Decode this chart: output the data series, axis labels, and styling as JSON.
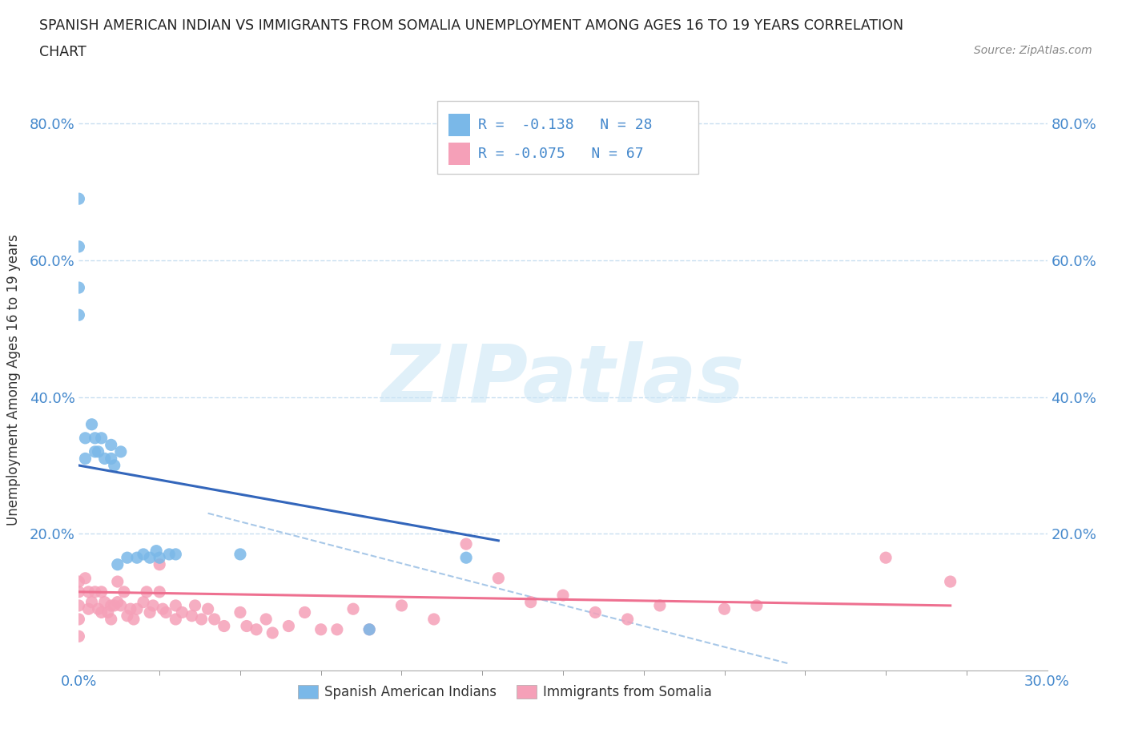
{
  "title_line1": "SPANISH AMERICAN INDIAN VS IMMIGRANTS FROM SOMALIA UNEMPLOYMENT AMONG AGES 16 TO 19 YEARS CORRELATION",
  "title_line2": "CHART",
  "source": "Source: ZipAtlas.com",
  "ylabel": "Unemployment Among Ages 16 to 19 years",
  "xlim": [
    0.0,
    0.3
  ],
  "ylim": [
    0.0,
    0.85
  ],
  "ytick_positions": [
    0.0,
    0.2,
    0.4,
    0.6,
    0.8
  ],
  "ytick_labels": [
    "",
    "20.0%",
    "40.0%",
    "60.0%",
    "80.0%"
  ],
  "grid_color": "#c8dff0",
  "background_color": "#ffffff",
  "watermark_text": "ZIPatlas",
  "legend_R1": "R =  -0.138",
  "legend_N1": "N = 28",
  "legend_R2": "R = -0.075",
  "legend_N2": "N = 67",
  "legend_label1": "Spanish American Indians",
  "legend_label2": "Immigrants from Somalia",
  "scatter_color1": "#7ab8e8",
  "scatter_color2": "#f5a0b8",
  "line_color1": "#3366bb",
  "line_color2": "#ee7090",
  "dashed_color": "#a8c8e8",
  "blue_x": [
    0.0,
    0.0,
    0.0,
    0.0,
    0.002,
    0.002,
    0.004,
    0.005,
    0.005,
    0.006,
    0.007,
    0.008,
    0.01,
    0.01,
    0.011,
    0.012,
    0.013,
    0.015,
    0.018,
    0.02,
    0.022,
    0.024,
    0.025,
    0.028,
    0.03,
    0.05,
    0.09,
    0.12
  ],
  "blue_y": [
    0.69,
    0.62,
    0.56,
    0.52,
    0.34,
    0.31,
    0.36,
    0.34,
    0.32,
    0.32,
    0.34,
    0.31,
    0.33,
    0.31,
    0.3,
    0.155,
    0.32,
    0.165,
    0.165,
    0.17,
    0.165,
    0.175,
    0.165,
    0.17,
    0.17,
    0.17,
    0.06,
    0.165
  ],
  "pink_x": [
    0.0,
    0.0,
    0.0,
    0.0,
    0.0,
    0.002,
    0.003,
    0.003,
    0.004,
    0.005,
    0.006,
    0.007,
    0.007,
    0.008,
    0.009,
    0.01,
    0.01,
    0.011,
    0.012,
    0.012,
    0.013,
    0.014,
    0.015,
    0.016,
    0.017,
    0.018,
    0.02,
    0.021,
    0.022,
    0.023,
    0.025,
    0.025,
    0.026,
    0.027,
    0.03,
    0.03,
    0.032,
    0.035,
    0.036,
    0.038,
    0.04,
    0.042,
    0.045,
    0.05,
    0.052,
    0.055,
    0.058,
    0.06,
    0.065,
    0.07,
    0.075,
    0.08,
    0.085,
    0.09,
    0.1,
    0.11,
    0.12,
    0.13,
    0.14,
    0.15,
    0.16,
    0.17,
    0.18,
    0.2,
    0.21,
    0.25,
    0.27
  ],
  "pink_y": [
    0.13,
    0.115,
    0.095,
    0.075,
    0.05,
    0.135,
    0.115,
    0.09,
    0.1,
    0.115,
    0.09,
    0.115,
    0.085,
    0.1,
    0.085,
    0.095,
    0.075,
    0.095,
    0.13,
    0.1,
    0.095,
    0.115,
    0.08,
    0.09,
    0.075,
    0.09,
    0.1,
    0.115,
    0.085,
    0.095,
    0.155,
    0.115,
    0.09,
    0.085,
    0.095,
    0.075,
    0.085,
    0.08,
    0.095,
    0.075,
    0.09,
    0.075,
    0.065,
    0.085,
    0.065,
    0.06,
    0.075,
    0.055,
    0.065,
    0.085,
    0.06,
    0.06,
    0.09,
    0.06,
    0.095,
    0.075,
    0.185,
    0.135,
    0.1,
    0.11,
    0.085,
    0.075,
    0.095,
    0.09,
    0.095,
    0.165,
    0.13
  ],
  "blue_trend_x": [
    0.0,
    0.13
  ],
  "blue_trend_y": [
    0.3,
    0.19
  ],
  "pink_trend_x": [
    0.0,
    0.27
  ],
  "pink_trend_y": [
    0.115,
    0.095
  ],
  "dashed_trend_x": [
    0.04,
    0.22
  ],
  "dashed_trend_y": [
    0.23,
    0.01
  ]
}
